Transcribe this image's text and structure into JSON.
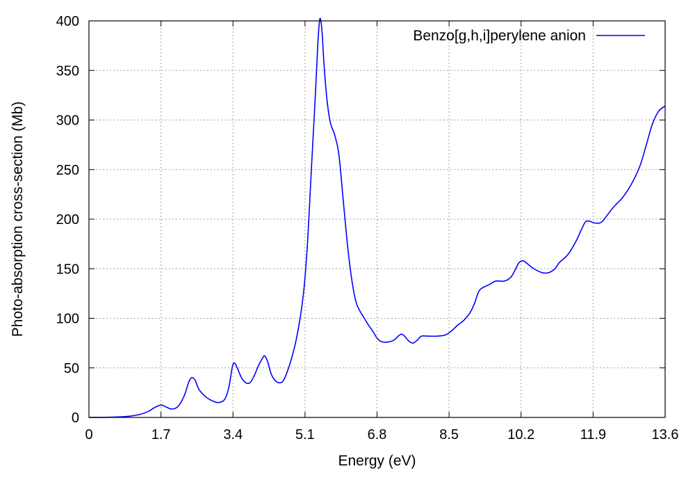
{
  "chart_data": {
    "type": "line",
    "xlabel": "Energy (eV)",
    "ylabel": "Photo-absorption cross-section (Mb)",
    "xlim": [
      0,
      13.6
    ],
    "ylim": [
      0,
      400
    ],
    "x_ticks": [
      "0",
      "1.7",
      "3.4",
      "5.1",
      "6.8",
      "8.5",
      "10.2",
      "11.9",
      "13.6"
    ],
    "y_ticks": [
      "0",
      "50",
      "100",
      "150",
      "200",
      "250",
      "300",
      "350",
      "400"
    ],
    "grid": true,
    "legend_position": "top-right",
    "series": [
      {
        "name": "Benzo[g,h,i]perylene anion",
        "color": "#0000ff",
        "points": [
          [
            0,
            0
          ],
          [
            0.5,
            0.2
          ],
          [
            0.9,
            1
          ],
          [
            1.2,
            3
          ],
          [
            1.4,
            6
          ],
          [
            1.55,
            10
          ],
          [
            1.7,
            12.5
          ],
          [
            1.8,
            11
          ],
          [
            1.95,
            8.5
          ],
          [
            2.1,
            11
          ],
          [
            2.25,
            22
          ],
          [
            2.35,
            35
          ],
          [
            2.42,
            40
          ],
          [
            2.5,
            38
          ],
          [
            2.6,
            28
          ],
          [
            2.75,
            21
          ],
          [
            2.9,
            17
          ],
          [
            3.05,
            15
          ],
          [
            3.2,
            18
          ],
          [
            3.3,
            30
          ],
          [
            3.38,
            50
          ],
          [
            3.43,
            55
          ],
          [
            3.5,
            50
          ],
          [
            3.6,
            40
          ],
          [
            3.7,
            35
          ],
          [
            3.8,
            35
          ],
          [
            3.9,
            42
          ],
          [
            4.0,
            52
          ],
          [
            4.1,
            60
          ],
          [
            4.15,
            62
          ],
          [
            4.22,
            56
          ],
          [
            4.3,
            44
          ],
          [
            4.4,
            37
          ],
          [
            4.5,
            35
          ],
          [
            4.6,
            38
          ],
          [
            4.75,
            55
          ],
          [
            4.9,
            80
          ],
          [
            5.05,
            120
          ],
          [
            5.15,
            170
          ],
          [
            5.25,
            250
          ],
          [
            5.35,
            330
          ],
          [
            5.4,
            375
          ],
          [
            5.45,
            402
          ],
          [
            5.5,
            390
          ],
          [
            5.55,
            355
          ],
          [
            5.62,
            320
          ],
          [
            5.7,
            297
          ],
          [
            5.8,
            285
          ],
          [
            5.9,
            265
          ],
          [
            6.0,
            220
          ],
          [
            6.1,
            175
          ],
          [
            6.2,
            140
          ],
          [
            6.3,
            117
          ],
          [
            6.4,
            107
          ],
          [
            6.5,
            100
          ],
          [
            6.6,
            93
          ],
          [
            6.7,
            87
          ],
          [
            6.8,
            80
          ],
          [
            6.9,
            76.5
          ],
          [
            7.05,
            76
          ],
          [
            7.2,
            78
          ],
          [
            7.3,
            82
          ],
          [
            7.38,
            84
          ],
          [
            7.45,
            82
          ],
          [
            7.55,
            77
          ],
          [
            7.65,
            75
          ],
          [
            7.75,
            78
          ],
          [
            7.85,
            82
          ],
          [
            8.0,
            82
          ],
          [
            8.2,
            82
          ],
          [
            8.4,
            83
          ],
          [
            8.55,
            87
          ],
          [
            8.7,
            93
          ],
          [
            8.85,
            98
          ],
          [
            9.0,
            106
          ],
          [
            9.1,
            115
          ],
          [
            9.2,
            127
          ],
          [
            9.3,
            131
          ],
          [
            9.45,
            134
          ],
          [
            9.6,
            137.5
          ],
          [
            9.8,
            137.5
          ],
          [
            9.95,
            141
          ],
          [
            10.05,
            148
          ],
          [
            10.15,
            156
          ],
          [
            10.25,
            158
          ],
          [
            10.35,
            155
          ],
          [
            10.5,
            150
          ],
          [
            10.7,
            146
          ],
          [
            10.85,
            146
          ],
          [
            11.0,
            150
          ],
          [
            11.1,
            156
          ],
          [
            11.3,
            164
          ],
          [
            11.5,
            178
          ],
          [
            11.7,
            196
          ],
          [
            11.8,
            198
          ],
          [
            11.95,
            196
          ],
          [
            12.1,
            197
          ],
          [
            12.25,
            205
          ],
          [
            12.4,
            213
          ],
          [
            12.6,
            222
          ],
          [
            12.8,
            235
          ],
          [
            13.0,
            253
          ],
          [
            13.15,
            274
          ],
          [
            13.3,
            296
          ],
          [
            13.45,
            309
          ],
          [
            13.6,
            314
          ]
        ]
      }
    ]
  }
}
